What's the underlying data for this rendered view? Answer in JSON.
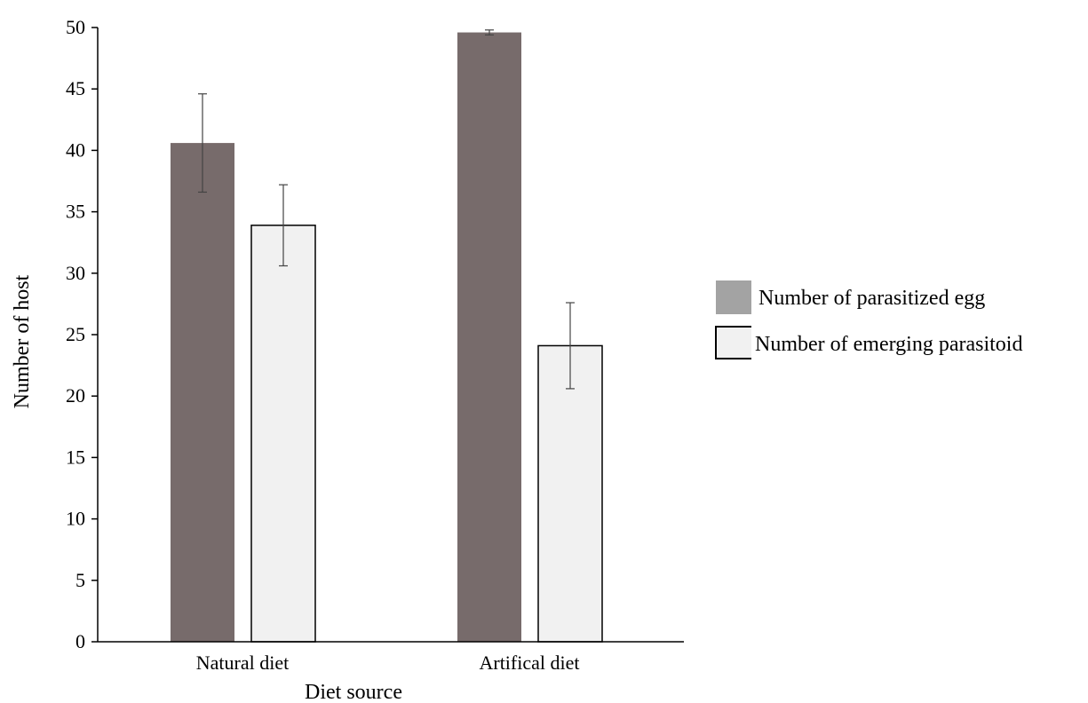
{
  "chart_data": {
    "type": "bar",
    "title": "",
    "xlabel": "Diet source",
    "ylabel": "Number of host",
    "ylim": [
      0,
      50
    ],
    "yticks": [
      0,
      5,
      10,
      15,
      20,
      25,
      30,
      35,
      40,
      45,
      50
    ],
    "categories": [
      "Natural diet",
      "Artifical diet"
    ],
    "series": [
      {
        "name": "Number of parasitized egg",
        "values": [
          40.6,
          49.6
        ],
        "error": [
          4.0,
          0.2
        ],
        "color": "#776b6b"
      },
      {
        "name": "Number of emerging parasitoid",
        "values": [
          33.9,
          24.1
        ],
        "error": [
          3.3,
          3.5
        ],
        "color": "#f1f1f1"
      }
    ],
    "grid": false,
    "legend_position": "right"
  }
}
